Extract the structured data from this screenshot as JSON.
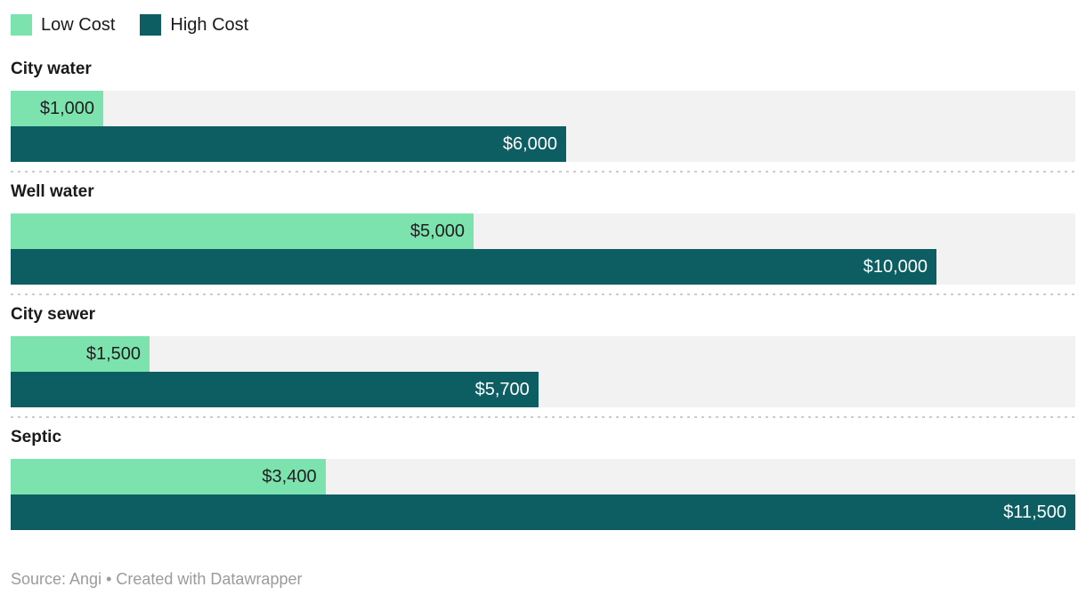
{
  "legend": {
    "low_label": "Low Cost",
    "high_label": "High Cost"
  },
  "colors": {
    "low": "#7ce3ae",
    "high": "#0c5e63",
    "track": "#f2f2f2",
    "divider": "#cccccc",
    "label_dark": "#1f1f1f",
    "label_light": "#ffffff",
    "footer_text": "#9b9b9b"
  },
  "footer": {
    "text": "Source: Angi • Created with Datawrapper"
  },
  "chart_data": {
    "type": "bar",
    "orientation": "horizontal",
    "title": "",
    "categories": [
      "City water",
      "Well water",
      "City sewer",
      "Septic"
    ],
    "series": [
      {
        "name": "Low Cost",
        "values": [
          1000,
          5000,
          1500,
          3400
        ],
        "labels": [
          "$1,000",
          "$5,000",
          "$1,500",
          "$3,400"
        ]
      },
      {
        "name": "High Cost",
        "values": [
          6000,
          10000,
          5700,
          11500
        ],
        "labels": [
          "$6,000",
          "$10,000",
          "$5,700",
          "$11,500"
        ]
      }
    ],
    "xlim": [
      0,
      11500
    ],
    "grid": false,
    "legend_position": "top-left",
    "value_labels": "inside-end"
  }
}
